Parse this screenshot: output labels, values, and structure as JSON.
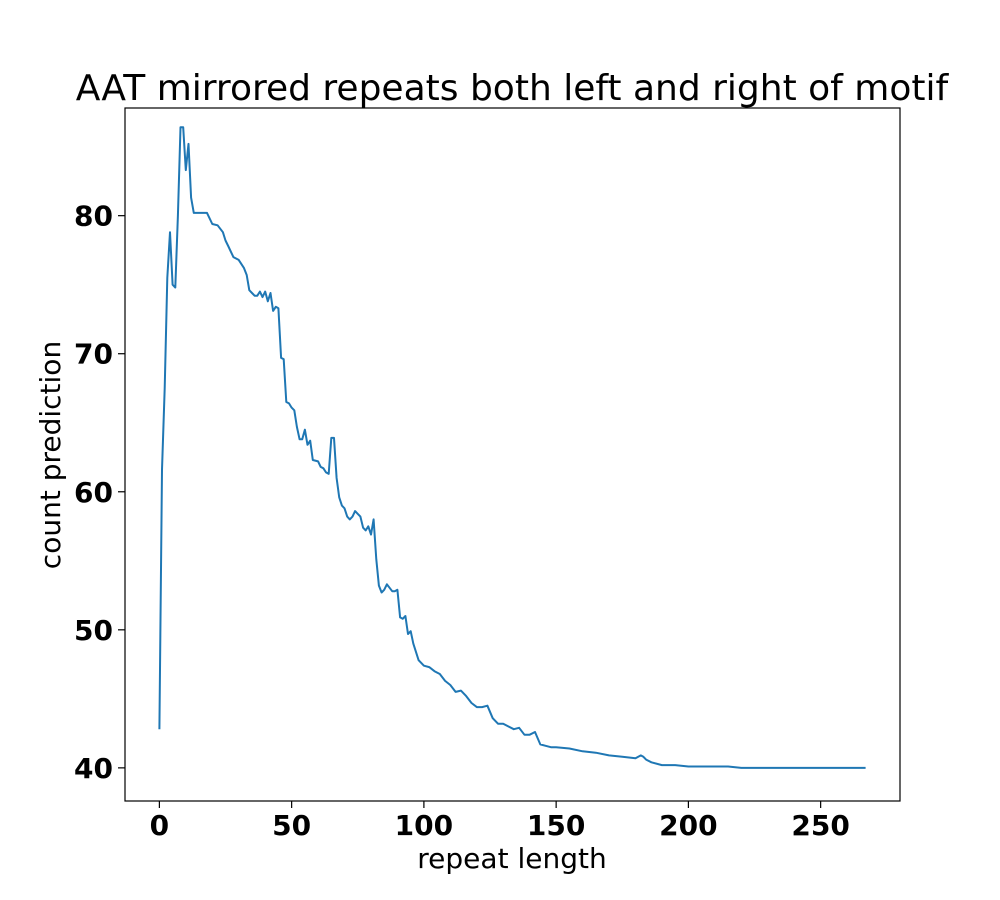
{
  "chart_data": {
    "type": "line",
    "title": "AAT mirrored repeats both left and right of motif",
    "xlabel": "repeat length",
    "ylabel": "count prediction",
    "xlim": [
      -13,
      280
    ],
    "ylim": [
      37.6,
      87.8
    ],
    "xticks": [
      0,
      50,
      100,
      150,
      200,
      250
    ],
    "yticks": [
      40,
      50,
      60,
      70,
      80
    ],
    "xtick_labels": [
      "0",
      "50",
      "100",
      "150",
      "200",
      "250"
    ],
    "ytick_labels": [
      "40",
      "50",
      "60",
      "70",
      "80"
    ],
    "grid": false,
    "series": [
      {
        "color": "#1f77b4",
        "x": [
          0,
          1,
          2,
          3,
          4,
          5,
          6,
          7,
          8,
          9,
          10,
          11,
          12,
          13,
          15,
          18,
          20,
          22,
          24,
          25,
          26,
          28,
          30,
          32,
          33,
          34,
          35,
          36,
          37,
          38,
          39,
          40,
          41,
          42,
          43,
          44,
          45,
          46,
          47,
          48,
          49,
          50,
          51,
          52,
          53,
          54,
          55,
          56,
          57,
          58,
          60,
          61,
          62,
          63,
          64,
          65,
          66,
          67,
          68,
          69,
          70,
          71,
          72,
          73,
          74,
          75,
          76,
          77,
          78,
          79,
          80,
          81,
          82,
          83,
          84,
          85,
          86,
          88,
          89,
          90,
          91,
          92,
          93,
          94,
          95,
          96,
          98,
          100,
          102,
          104,
          106,
          108,
          110,
          112,
          114,
          116,
          118,
          120,
          122,
          124,
          126,
          128,
          130,
          132,
          134,
          136,
          138,
          140,
          142,
          144,
          146,
          148,
          150,
          155,
          160,
          165,
          170,
          175,
          180,
          182,
          183,
          184,
          186,
          190,
          195,
          200,
          205,
          210,
          211,
          215,
          220,
          225,
          230,
          240,
          250,
          260,
          267
        ],
        "y": [
          42.8,
          61.6,
          67.5,
          75.5,
          78.8,
          75.0,
          74.8,
          80.0,
          86.4,
          86.4,
          83.3,
          85.2,
          81.3,
          80.2,
          80.2,
          80.2,
          79.4,
          79.3,
          78.8,
          78.2,
          77.8,
          77.0,
          76.8,
          76.2,
          75.7,
          74.6,
          74.4,
          74.2,
          74.2,
          74.5,
          74.1,
          74.5,
          73.8,
          74.4,
          73.1,
          73.4,
          73.3,
          69.7,
          69.6,
          66.5,
          66.4,
          66.1,
          65.9,
          64.7,
          63.8,
          63.8,
          64.5,
          63.4,
          63.7,
          62.3,
          62.2,
          61.8,
          61.7,
          61.4,
          61.3,
          63.9,
          63.9,
          61.0,
          59.6,
          59.0,
          58.8,
          58.2,
          58.0,
          58.2,
          58.6,
          58.4,
          58.2,
          57.4,
          57.2,
          57.5,
          56.9,
          58.0,
          55.1,
          53.2,
          52.7,
          52.9,
          53.3,
          52.8,
          52.8,
          52.9,
          50.9,
          50.8,
          51.0,
          49.7,
          49.9,
          49.0,
          47.8,
          47.4,
          47.3,
          47.0,
          46.8,
          46.3,
          46.0,
          45.5,
          45.6,
          45.2,
          44.7,
          44.4,
          44.4,
          44.5,
          43.6,
          43.2,
          43.2,
          43.0,
          42.8,
          42.9,
          42.4,
          42.4,
          42.6,
          41.7,
          41.6,
          41.5,
          41.5,
          41.4,
          41.2,
          41.1,
          40.9,
          40.8,
          40.7,
          40.9,
          40.8,
          40.6,
          40.4,
          40.2,
          40.2,
          40.1,
          40.1,
          40.1,
          40.1,
          40.1,
          40.0,
          40.0,
          40.0,
          40.0,
          40.0,
          40.0,
          40.0
        ]
      }
    ]
  }
}
